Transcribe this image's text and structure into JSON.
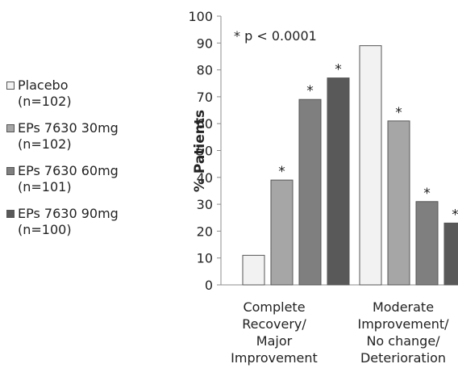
{
  "legend": {
    "items": [
      {
        "name": "Placebo",
        "n": "(n=102)",
        "color": "#f2f2f2"
      },
      {
        "name": "EPs 7630 30mg",
        "n": "(n=102)",
        "color": "#a6a6a6"
      },
      {
        "name": "EPs 7630 60mg",
        "n": "(n=101)",
        "color": "#7f7f7f"
      },
      {
        "name": "EPs 7630 90mg",
        "n": "(n=100)",
        "color": "#595959"
      }
    ]
  },
  "chart_data": {
    "type": "bar",
    "ylabel": "% Patients",
    "ylim": [
      0,
      100
    ],
    "yticks": [
      0,
      10,
      20,
      30,
      40,
      50,
      60,
      70,
      80,
      90,
      100
    ],
    "annotation": "*  p < 0.0001",
    "categories": [
      [
        "Complete",
        "Recovery/",
        "Major",
        "Improvement"
      ],
      [
        "Moderate",
        "Improvement/",
        "No change/",
        "Deterioration"
      ]
    ],
    "series": [
      {
        "name": "Placebo",
        "values": [
          11,
          89
        ],
        "significant": [
          false,
          false
        ],
        "color": "#f2f2f2"
      },
      {
        "name": "EPs 7630 30mg",
        "values": [
          39,
          61
        ],
        "significant": [
          true,
          true
        ],
        "color": "#a6a6a6"
      },
      {
        "name": "EPs 7630 60mg",
        "values": [
          69,
          31
        ],
        "significant": [
          true,
          true
        ],
        "color": "#7f7f7f"
      },
      {
        "name": "EPs 7630 90mg",
        "values": [
          77,
          23
        ],
        "significant": [
          true,
          true
        ],
        "color": "#595959"
      }
    ],
    "marker": "*",
    "legend_position": "left",
    "grid": false
  }
}
